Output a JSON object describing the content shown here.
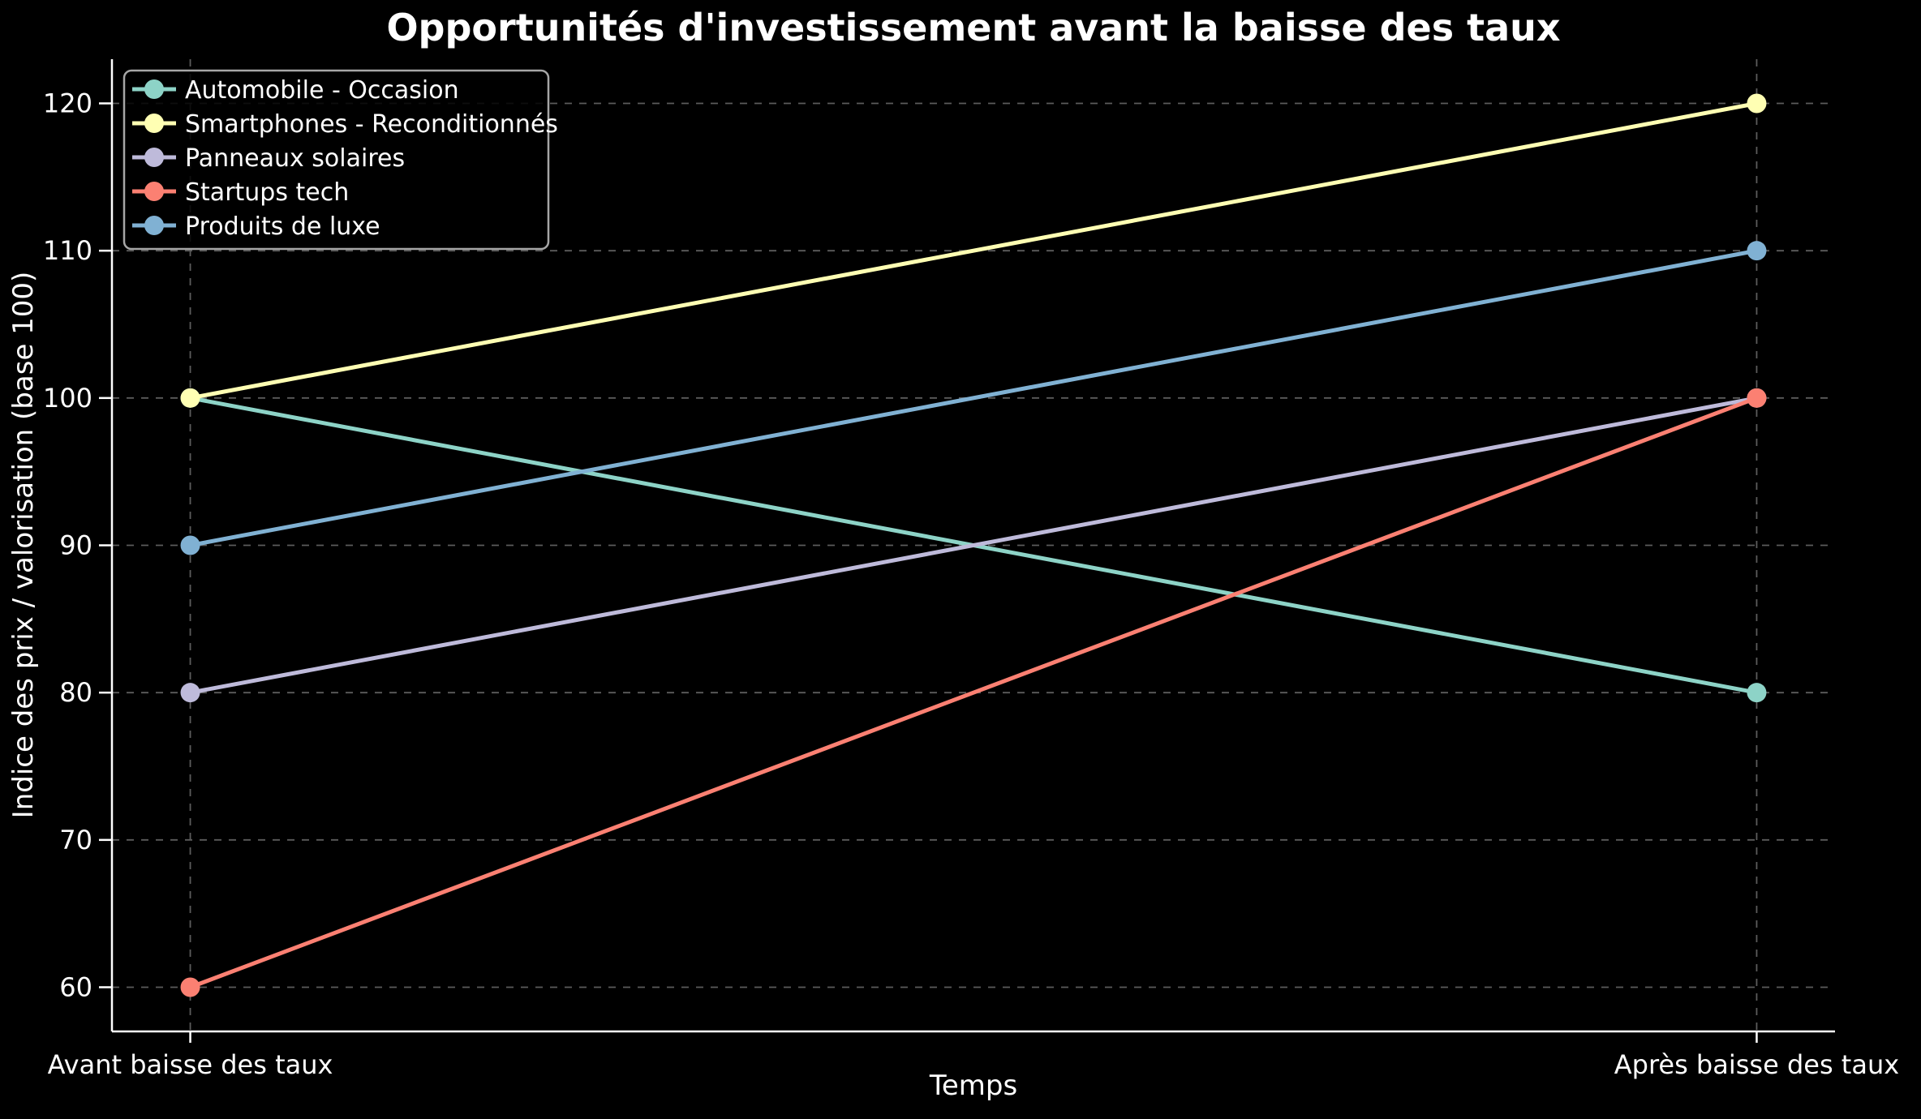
{
  "chart_data": {
    "type": "line",
    "title": "Opportunités d'investissement avant la baisse des taux",
    "xlabel": "Temps",
    "ylabel": "Indice des prix / valorisation (base 100)",
    "categories": [
      "Avant baisse des taux",
      "Après baisse des taux"
    ],
    "yticks": [
      60,
      70,
      80,
      90,
      100,
      110,
      120
    ],
    "ylim": [
      57,
      123
    ],
    "grid": true,
    "grid_style": "dashed",
    "legend_position": "upper-left",
    "series": [
      {
        "name": "Automobile - Occasion",
        "color": "#8dd3c7",
        "values": [
          100,
          80
        ]
      },
      {
        "name": "Smartphones - Reconditionnés",
        "color": "#ffffb3",
        "values": [
          100,
          120
        ]
      },
      {
        "name": "Panneaux solaires",
        "color": "#bebada",
        "values": [
          80,
          100
        ]
      },
      {
        "name": "Startups tech",
        "color": "#fb8072",
        "values": [
          60,
          100
        ]
      },
      {
        "name": "Produits de luxe",
        "color": "#80b1d3",
        "values": [
          90,
          110
        ]
      }
    ],
    "colors": {
      "background": "#000000",
      "text": "#ffffff",
      "grid": "#5c5c5c",
      "spine": "#ffffff",
      "legend_border": "#a6a6a6",
      "legend_background": "rgba(0,0,0,0.85)"
    }
  }
}
